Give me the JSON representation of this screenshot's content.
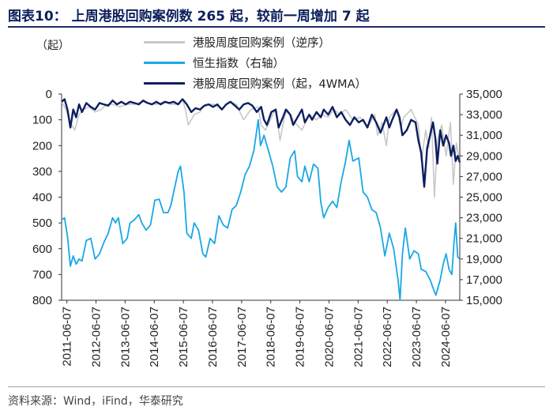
{
  "title": "图表10：  上周港股回购案例数 265 起，较前一周增加 7 起",
  "source": "资料来源：Wind，iFind，华泰研究",
  "chart_data": {
    "type": "line",
    "left_unit_label": "（起）",
    "left_axis": {
      "min": 0,
      "max": 800,
      "inverted": true,
      "ticks": [
        0,
        100,
        200,
        300,
        400,
        500,
        600,
        700,
        800
      ],
      "tick_labels": [
        "0",
        "100",
        "200",
        "300",
        "400",
        "500",
        "600",
        "700",
        "800"
      ]
    },
    "right_axis": {
      "min": 15000,
      "max": 35000,
      "ticks": [
        15000,
        17000,
        19000,
        21000,
        23000,
        25000,
        27000,
        29000,
        31000,
        33000,
        35000
      ],
      "tick_labels": [
        "15,000",
        "17,000",
        "19,000",
        "21,000",
        "23,000",
        "25,000",
        "27,000",
        "29,000",
        "31,000",
        "33,000",
        "35,000"
      ]
    },
    "x_axis": {
      "min": 2011.25,
      "max": 2024.92,
      "ticks": [
        2011.43,
        2012.43,
        2013.43,
        2014.43,
        2015.43,
        2016.43,
        2017.43,
        2018.43,
        2019.43,
        2020.43,
        2021.43,
        2022.43,
        2023.43,
        2024.43
      ],
      "tick_labels": [
        "2011-06-07",
        "2012-06-07",
        "2013-06-07",
        "2014-06-07",
        "2015-06-07",
        "2016-06-07",
        "2017-06-07",
        "2018-06-07",
        "2019-06-07",
        "2020-06-07",
        "2021-06-07",
        "2022-06-07",
        "2023-06-07",
        "2024-06-07"
      ]
    },
    "colors": {
      "weekly": "#c8c8c8",
      "hsi": "#1aa7e6",
      "wma": "#0c1f5e"
    },
    "series": [
      {
        "name": "港股周度回购案例（逆序）",
        "axis": "left",
        "color": "#c8c8c8",
        "x": [
          2011.25,
          2011.4,
          2011.55,
          2011.7,
          2011.85,
          2012.0,
          2012.2,
          2012.4,
          2012.6,
          2012.8,
          2013.0,
          2013.25,
          2013.5,
          2013.75,
          2014.0,
          2014.25,
          2014.5,
          2014.75,
          2015.0,
          2015.2,
          2015.4,
          2015.5,
          2015.6,
          2015.8,
          2016.0,
          2016.1,
          2016.25,
          2016.5,
          2016.75,
          2017.0,
          2017.25,
          2017.5,
          2017.75,
          2018.0,
          2018.1,
          2018.25,
          2018.5,
          2018.6,
          2018.75,
          2018.9,
          2019.0,
          2019.25,
          2019.5,
          2019.75,
          2020.0,
          2020.2,
          2020.4,
          2020.6,
          2020.8,
          2021.0,
          2021.25,
          2021.5,
          2021.75,
          2022.0,
          2022.1,
          2022.25,
          2022.4,
          2022.5,
          2022.75,
          2022.9,
          2023.0,
          2023.25,
          2023.5,
          2023.6,
          2023.75,
          2023.85,
          2023.95,
          2024.05,
          2024.15,
          2024.3,
          2024.45,
          2024.6,
          2024.7,
          2024.8,
          2024.92
        ],
        "y": [
          30,
          60,
          110,
          140,
          80,
          60,
          50,
          70,
          60,
          40,
          40,
          50,
          40,
          40,
          30,
          35,
          40,
          30,
          40,
          40,
          20,
          60,
          120,
          80,
          70,
          50,
          40,
          40,
          60,
          30,
          40,
          100,
          60,
          50,
          120,
          140,
          80,
          60,
          180,
          90,
          60,
          110,
          140,
          80,
          100,
          80,
          90,
          60,
          80,
          60,
          100,
          90,
          130,
          80,
          160,
          110,
          200,
          90,
          60,
          130,
          90,
          60,
          120,
          260,
          140,
          210,
          90,
          400,
          180,
          120,
          240,
          110,
          350,
          190,
          265
        ]
      },
      {
        "name": "恒生指数（右轴）",
        "axis": "right",
        "color": "#1aa7e6",
        "x": [
          2011.25,
          2011.35,
          2011.45,
          2011.55,
          2011.65,
          2011.75,
          2011.85,
          2011.95,
          2012.1,
          2012.25,
          2012.4,
          2012.55,
          2012.7,
          2012.85,
          2013.0,
          2013.1,
          2013.2,
          2013.35,
          2013.5,
          2013.6,
          2013.75,
          2013.9,
          2014.0,
          2014.15,
          2014.3,
          2014.45,
          2014.6,
          2014.75,
          2014.9,
          2015.0,
          2015.1,
          2015.25,
          2015.33,
          2015.45,
          2015.55,
          2015.7,
          2015.8,
          2015.95,
          2016.1,
          2016.2,
          2016.35,
          2016.5,
          2016.65,
          2016.8,
          2016.95,
          2017.1,
          2017.25,
          2017.4,
          2017.55,
          2017.7,
          2017.85,
          2018.0,
          2018.08,
          2018.2,
          2018.35,
          2018.5,
          2018.65,
          2018.8,
          2018.95,
          2019.1,
          2019.25,
          2019.35,
          2019.5,
          2019.6,
          2019.75,
          2019.9,
          2020.05,
          2020.15,
          2020.25,
          2020.4,
          2020.55,
          2020.7,
          2020.85,
          2021.0,
          2021.12,
          2021.25,
          2021.45,
          2021.6,
          2021.75,
          2021.9,
          2022.05,
          2022.2,
          2022.35,
          2022.5,
          2022.65,
          2022.8,
          2022.87,
          2022.95,
          2023.05,
          2023.2,
          2023.35,
          2023.5,
          2023.6,
          2023.75,
          2023.9,
          2024.0,
          2024.1,
          2024.25,
          2024.35,
          2024.45,
          2024.55,
          2024.65,
          2024.72,
          2024.78,
          2024.85,
          2024.92
        ],
        "y": [
          22800,
          23000,
          21200,
          18300,
          19300,
          18500,
          19000,
          18800,
          20800,
          21000,
          19000,
          19500,
          20600,
          21500,
          23000,
          22500,
          23000,
          20500,
          21000,
          22500,
          22800,
          23300,
          22500,
          21800,
          22300,
          24700,
          24800,
          23500,
          23500,
          24200,
          25500,
          27500,
          28000,
          25500,
          21500,
          21000,
          22500,
          21800,
          19500,
          19200,
          21000,
          20500,
          23200,
          22300,
          22000,
          23800,
          24200,
          25500,
          27200,
          28000,
          29500,
          32500,
          30000,
          31000,
          29500,
          28000,
          26000,
          25500,
          26000,
          28800,
          29500,
          27000,
          26500,
          28000,
          26500,
          28200,
          27800,
          24500,
          23000,
          24000,
          24600,
          24000,
          26500,
          28500,
          30500,
          28500,
          28800,
          25500,
          25000,
          23800,
          23500,
          22000,
          19300,
          21500,
          20000,
          17000,
          15000,
          19500,
          22000,
          19000,
          19800,
          19500,
          18000,
          17800,
          17000,
          16200,
          15500,
          17000,
          18500,
          19500,
          18000,
          17500,
          20500,
          22500,
          19200,
          19000
        ]
      },
      {
        "name": "港股周度回购案例（起，4WMA）",
        "axis": "left",
        "color": "#0c1f5e",
        "x": [
          2011.25,
          2011.35,
          2011.45,
          2011.55,
          2011.65,
          2011.75,
          2011.85,
          2011.95,
          2012.1,
          2012.25,
          2012.4,
          2012.55,
          2012.7,
          2012.85,
          2013.0,
          2013.15,
          2013.3,
          2013.45,
          2013.6,
          2013.75,
          2013.9,
          2014.05,
          2014.2,
          2014.35,
          2014.5,
          2014.65,
          2014.8,
          2014.95,
          2015.1,
          2015.25,
          2015.4,
          2015.55,
          2015.7,
          2015.85,
          2016.0,
          2016.15,
          2016.3,
          2016.45,
          2016.6,
          2016.75,
          2016.9,
          2017.05,
          2017.2,
          2017.35,
          2017.5,
          2017.65,
          2017.8,
          2017.95,
          2018.1,
          2018.2,
          2018.3,
          2018.45,
          2018.6,
          2018.7,
          2018.85,
          2018.95,
          2019.1,
          2019.2,
          2019.35,
          2019.5,
          2019.6,
          2019.75,
          2019.85,
          2020.0,
          2020.15,
          2020.25,
          2020.4,
          2020.55,
          2020.7,
          2020.85,
          2021.0,
          2021.15,
          2021.3,
          2021.45,
          2021.6,
          2021.75,
          2021.9,
          2022.05,
          2022.2,
          2022.3,
          2022.4,
          2022.5,
          2022.6,
          2022.75,
          2022.85,
          2022.95,
          2023.1,
          2023.25,
          2023.4,
          2023.5,
          2023.6,
          2023.7,
          2023.8,
          2023.9,
          2024.0,
          2024.08,
          2024.15,
          2024.25,
          2024.35,
          2024.45,
          2024.55,
          2024.62,
          2024.7,
          2024.78,
          2024.85,
          2024.92
        ],
        "y": [
          30,
          20,
          60,
          130,
          60,
          90,
          40,
          70,
          35,
          50,
          60,
          35,
          40,
          45,
          25,
          40,
          30,
          40,
          30,
          35,
          40,
          25,
          35,
          40,
          30,
          40,
          30,
          35,
          30,
          40,
          20,
          40,
          70,
          55,
          60,
          45,
          40,
          50,
          40,
          60,
          40,
          30,
          45,
          60,
          40,
          35,
          45,
          70,
          50,
          100,
          120,
          70,
          60,
          130,
          90,
          60,
          80,
          120,
          90,
          60,
          110,
          80,
          100,
          70,
          90,
          60,
          80,
          50,
          90,
          70,
          100,
          120,
          90,
          110,
          100,
          130,
          80,
          110,
          150,
          120,
          90,
          130,
          100,
          60,
          90,
          160,
          140,
          100,
          110,
          180,
          230,
          360,
          210,
          160,
          110,
          170,
          270,
          140,
          200,
          160,
          190,
          240,
          200,
          260,
          240,
          265
        ]
      }
    ]
  }
}
